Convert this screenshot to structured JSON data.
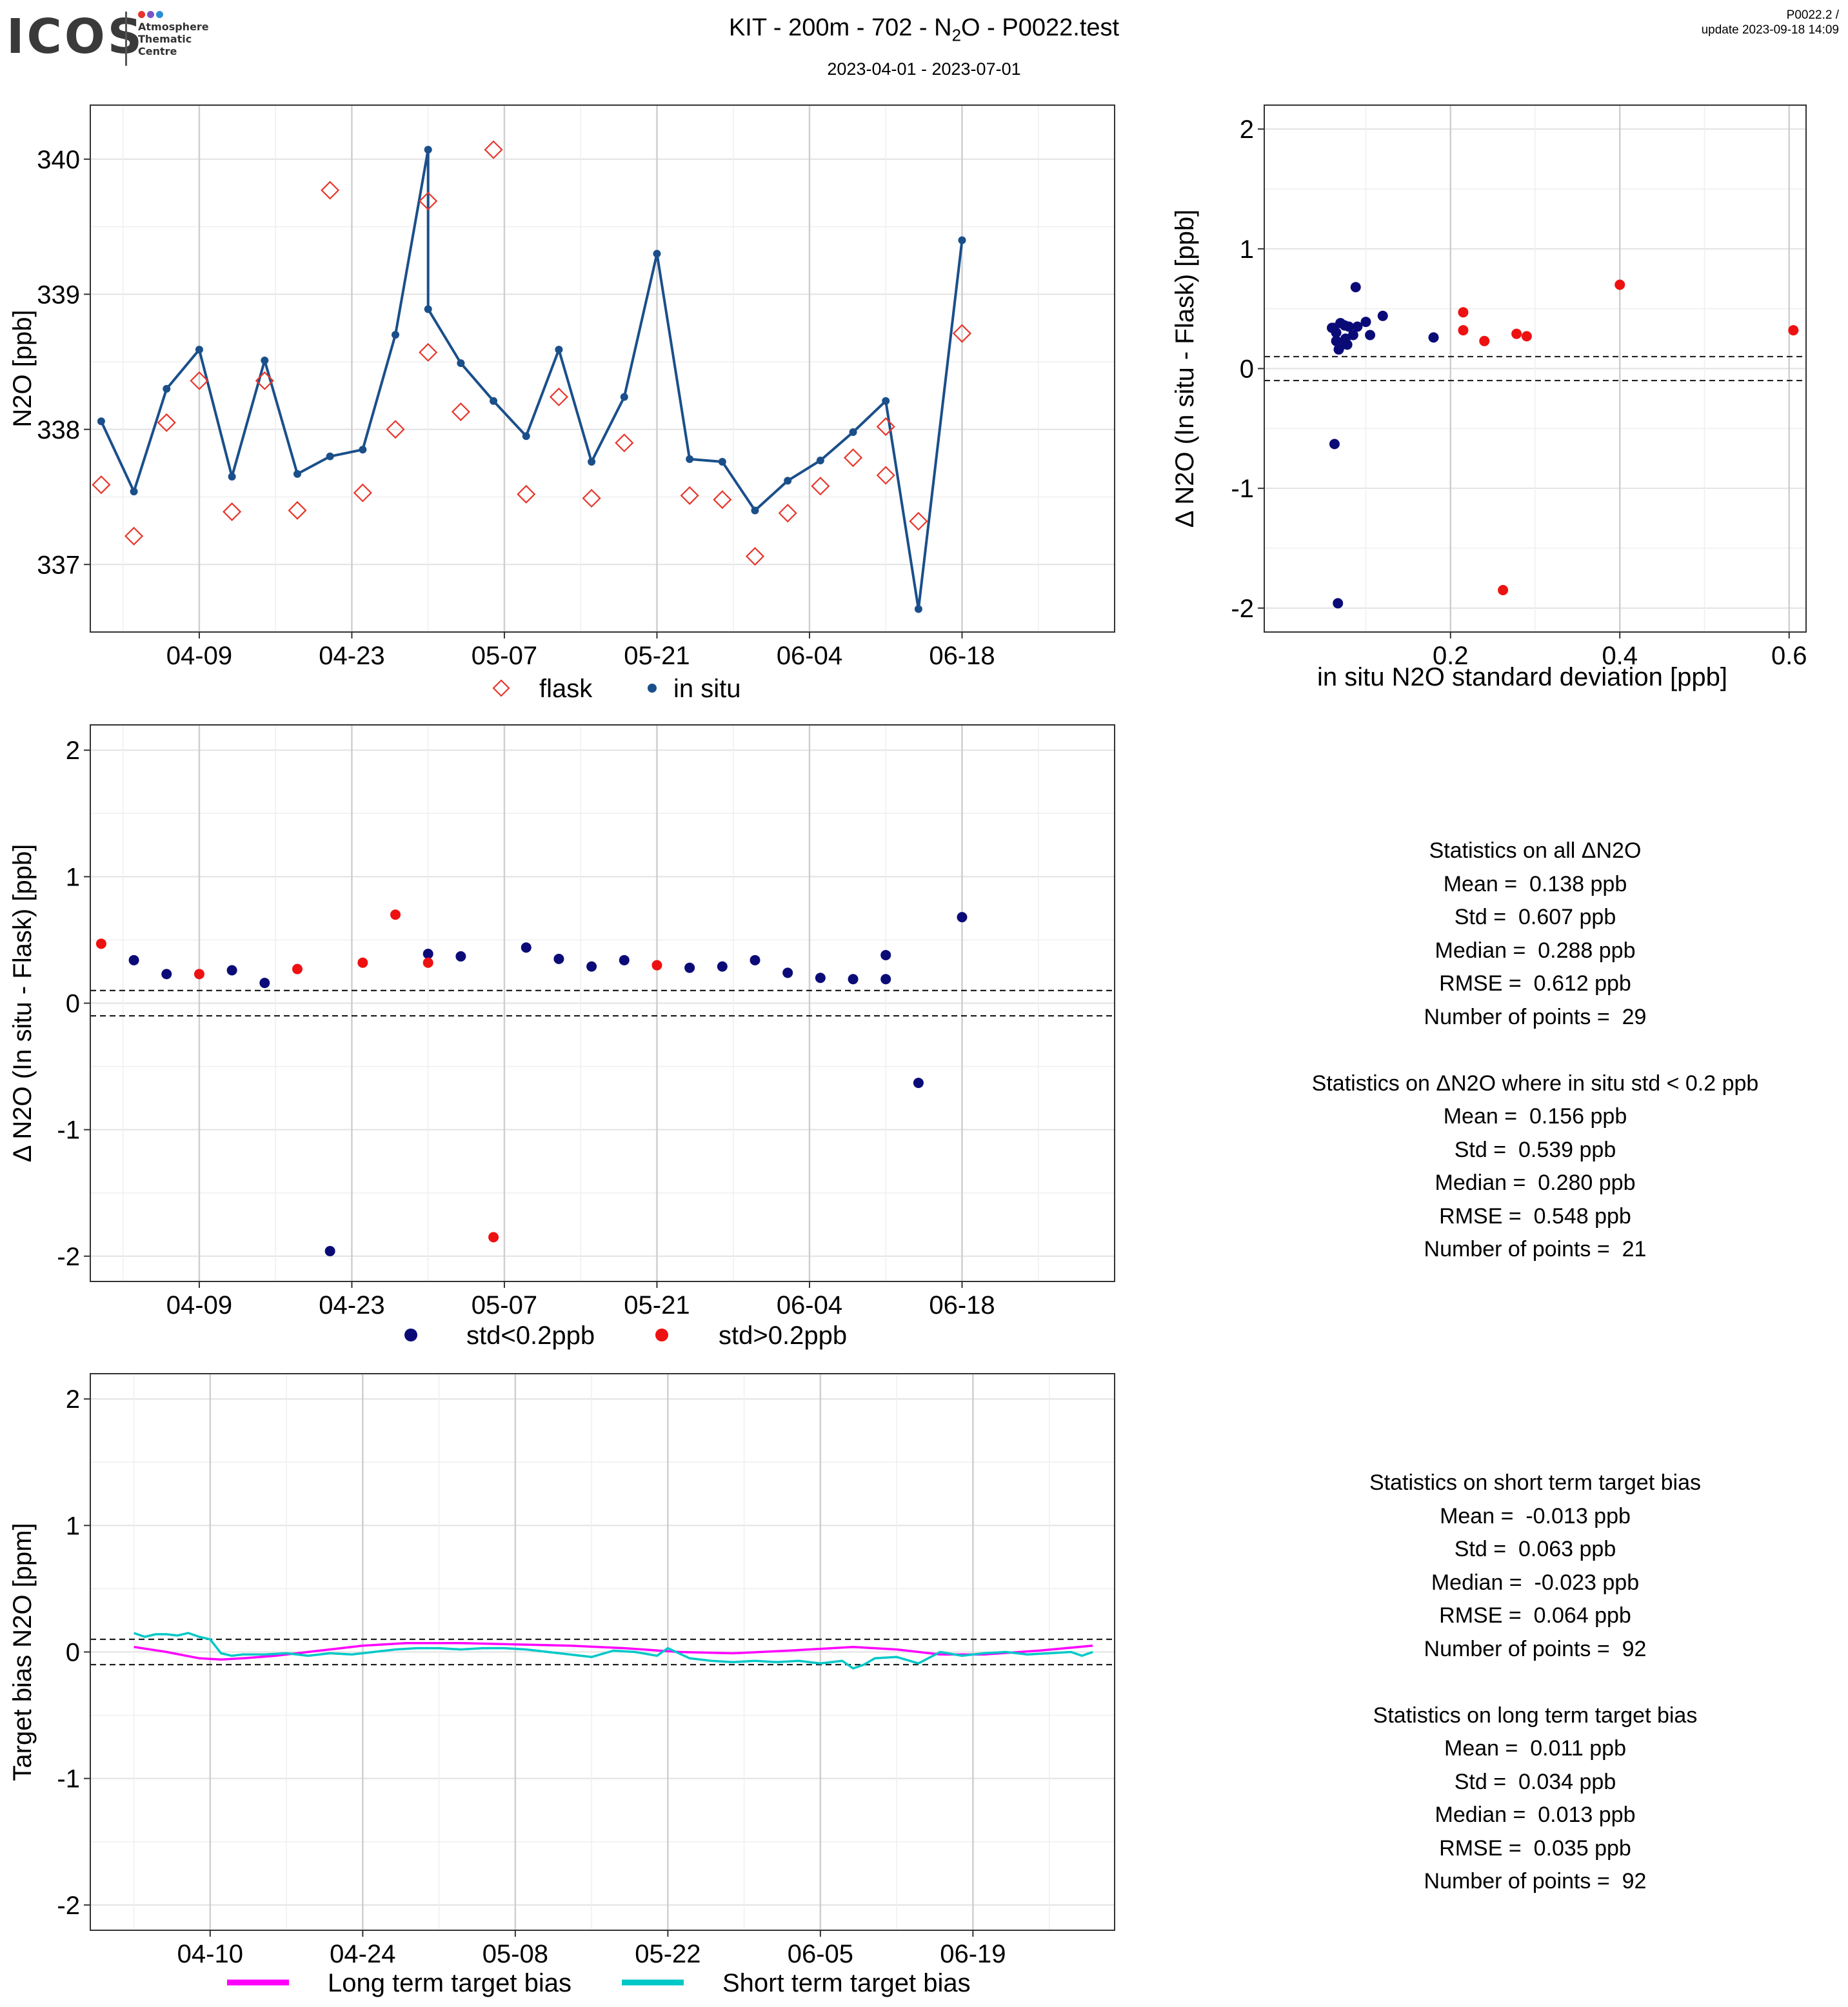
{
  "header": {
    "logo": "ICOS",
    "logo_sub": [
      "Atmosphere",
      "Thematic",
      "Centre"
    ],
    "title_pre": "KIT - 200m - 702 - N",
    "title_sub": "2",
    "title_post": "O - P0022.test",
    "subtitle": "2023-04-01 - 2023-07-01",
    "version": "P0022.2 /",
    "update": "update  2023-09-18 14:09"
  },
  "colors": {
    "insitu": "#1a4f8a",
    "flask": "#e8352a",
    "low_std": "#0b0b78",
    "high_std": "#ee1111",
    "long_term": "#ff00ff",
    "short_term": "#00c8c8"
  },
  "chart_data": [
    {
      "type": "line",
      "ylabel": "N2O [ppb]",
      "ylim": [
        336.5,
        340.4
      ],
      "yticks": [
        337,
        338,
        339,
        340
      ],
      "xticks": [
        {
          "date": "2023-04-09",
          "label": "04-09"
        },
        {
          "date": "2023-04-23",
          "label": "04-23"
        },
        {
          "date": "2023-05-07",
          "label": "05-07"
        },
        {
          "date": "2023-05-21",
          "label": "05-21"
        },
        {
          "date": "2023-06-04",
          "label": "06-04"
        },
        {
          "date": "2023-06-18",
          "label": "06-18"
        }
      ],
      "legend": [
        "flask",
        "in situ"
      ],
      "legend_position": "bottom",
      "series": [
        {
          "name": "in situ",
          "marker": "dot-line",
          "x": [
            "2023-03-31",
            "2023-04-03",
            "2023-04-06",
            "2023-04-09",
            "2023-04-12",
            "2023-04-15",
            "2023-04-18",
            "2023-04-21",
            "2023-04-24",
            "2023-04-27",
            "2023-04-30",
            "2023-04-30",
            "2023-05-03",
            "2023-05-06",
            "2023-05-09",
            "2023-05-12",
            "2023-05-15",
            "2023-05-18",
            "2023-05-21",
            "2023-05-24",
            "2023-05-27",
            "2023-05-30",
            "2023-06-02",
            "2023-06-05",
            "2023-06-08",
            "2023-06-11",
            "2023-06-14",
            "2023-06-18"
          ],
          "values": [
            338.06,
            337.54,
            338.3,
            338.59,
            337.65,
            338.51,
            337.67,
            337.8,
            337.85,
            338.7,
            340.07,
            338.89,
            338.49,
            338.21,
            337.95,
            338.59,
            337.76,
            338.24,
            339.3,
            337.78,
            337.76,
            337.4,
            337.62,
            337.77,
            337.98,
            338.21,
            336.67,
            339.4
          ]
        },
        {
          "name": "flask",
          "marker": "diamond",
          "x": [
            "2023-03-31",
            "2023-04-03",
            "2023-04-06",
            "2023-04-09",
            "2023-04-12",
            "2023-04-15",
            "2023-04-18",
            "2023-04-21",
            "2023-04-24",
            "2023-04-27",
            "2023-04-30",
            "2023-04-30",
            "2023-05-03",
            "2023-05-06",
            "2023-05-09",
            "2023-05-12",
            "2023-05-15",
            "2023-05-18",
            "2023-05-24",
            "2023-05-27",
            "2023-05-30",
            "2023-06-02",
            "2023-06-05",
            "2023-06-08",
            "2023-06-11",
            "2023-06-11",
            "2023-06-14",
            "2023-06-18"
          ],
          "values": [
            337.59,
            337.21,
            338.05,
            338.36,
            337.39,
            338.36,
            337.4,
            339.77,
            337.53,
            338.0,
            339.69,
            338.57,
            338.13,
            340.07,
            337.52,
            338.24,
            337.49,
            337.9,
            337.51,
            337.48,
            337.06,
            337.38,
            337.58,
            337.79,
            338.02,
            337.66,
            337.32,
            338.71
          ]
        }
      ]
    },
    {
      "type": "scatter",
      "xlabel": "in situ N2O standard deviation [ppb]",
      "ylabel": "Δ N2O (In situ - Flask) [ppb]",
      "xlim": [
        -0.02,
        0.62
      ],
      "ylim": [
        -2.2,
        2.2
      ],
      "xticks": [
        0.2,
        0.4,
        0.6
      ],
      "yticks": [
        -2,
        -1,
        0,
        1,
        2
      ],
      "hlines": [
        0.1,
        -0.1
      ],
      "series": [
        {
          "name": "std<0.2ppb",
          "x": [
            0.06,
            0.065,
            0.07,
            0.072,
            0.075,
            0.078,
            0.08,
            0.085,
            0.088,
            0.09,
            0.1,
            0.105,
            0.12,
            0.18,
            0.068,
            0.062,
            0.07,
            0.076,
            0.063,
            0.067,
            0.065
          ],
          "y": [
            0.34,
            0.3,
            0.38,
            0.22,
            0.36,
            0.2,
            0.35,
            0.28,
            0.68,
            0.35,
            0.39,
            0.28,
            0.44,
            0.26,
            0.16,
            0.34,
            0.19,
            0.25,
            -0.63,
            -1.96,
            0.23
          ]
        },
        {
          "name": "std>0.2ppb",
          "x": [
            0.215,
            0.215,
            0.24,
            0.262,
            0.278,
            0.29,
            0.4,
            0.605
          ],
          "y": [
            0.47,
            0.32,
            0.23,
            -1.85,
            0.29,
            0.27,
            0.7,
            0.32
          ]
        }
      ]
    },
    {
      "type": "scatter",
      "ylabel": "Δ N2O (In situ - Flask) [ppb]",
      "ylim": [
        -2.2,
        2.2
      ],
      "yticks": [
        -2,
        -1,
        0,
        1,
        2
      ],
      "xticks": [
        {
          "date": "2023-04-09",
          "label": "04-09"
        },
        {
          "date": "2023-04-23",
          "label": "04-23"
        },
        {
          "date": "2023-05-07",
          "label": "05-07"
        },
        {
          "date": "2023-05-21",
          "label": "05-21"
        },
        {
          "date": "2023-06-04",
          "label": "06-04"
        },
        {
          "date": "2023-06-18",
          "label": "06-18"
        }
      ],
      "hlines": [
        0.1,
        -0.1
      ],
      "legend": [
        "std<0.2ppb",
        "std>0.2ppb"
      ],
      "legend_position": "bottom",
      "series": [
        {
          "name": "std<0.2ppb",
          "x": [
            "2023-04-03",
            "2023-04-06",
            "2023-04-12",
            "2023-04-15",
            "2023-04-21",
            "2023-04-30",
            "2023-05-03",
            "2023-05-09",
            "2023-05-12",
            "2023-05-15",
            "2023-05-18",
            "2023-05-24",
            "2023-05-27",
            "2023-05-30",
            "2023-06-02",
            "2023-06-05",
            "2023-06-08",
            "2023-06-11",
            "2023-06-11",
            "2023-06-14",
            "2023-06-18"
          ],
          "values": [
            0.34,
            0.23,
            0.26,
            0.16,
            -1.96,
            0.39,
            0.37,
            0.44,
            0.35,
            0.29,
            0.34,
            0.28,
            0.29,
            0.34,
            0.24,
            0.2,
            0.19,
            0.19,
            0.38,
            -0.63,
            0.68
          ]
        },
        {
          "name": "std>0.2ppb",
          "x": [
            "2023-03-31",
            "2023-04-09",
            "2023-04-18",
            "2023-04-24",
            "2023-04-27",
            "2023-04-30",
            "2023-05-06",
            "2023-05-21"
          ],
          "values": [
            0.47,
            0.23,
            0.27,
            0.32,
            0.7,
            0.32,
            -1.85,
            0.3
          ]
        }
      ]
    },
    {
      "type": "line",
      "ylabel": "Target bias N2O [ppm]",
      "ylim": [
        -2.2,
        2.2
      ],
      "yticks": [
        -2,
        -1,
        0,
        1,
        2
      ],
      "xticks": [
        {
          "date": "2023-04-10",
          "label": "04-10"
        },
        {
          "date": "2023-04-24",
          "label": "04-24"
        },
        {
          "date": "2023-05-08",
          "label": "05-08"
        },
        {
          "date": "2023-05-22",
          "label": "05-22"
        },
        {
          "date": "2023-06-05",
          "label": "06-05"
        },
        {
          "date": "2023-06-19",
          "label": "06-19"
        }
      ],
      "hlines": [
        0.1,
        -0.1
      ],
      "legend": [
        "Long term target bias",
        "Short term target bias"
      ],
      "legend_position": "bottom",
      "series": [
        {
          "name": "Long term target bias",
          "x": [
            "2023-04-03",
            "2023-04-06",
            "2023-04-09",
            "2023-04-11",
            "2023-04-13",
            "2023-04-16",
            "2023-04-20",
            "2023-04-24",
            "2023-04-28",
            "2023-05-03",
            "2023-05-08",
            "2023-05-13",
            "2023-05-18",
            "2023-05-23",
            "2023-05-28",
            "2023-06-02",
            "2023-06-08",
            "2023-06-12",
            "2023-06-16",
            "2023-06-20",
            "2023-06-25",
            "2023-06-30"
          ],
          "values": [
            0.04,
            0.0,
            -0.05,
            -0.06,
            -0.05,
            -0.03,
            0.01,
            0.05,
            0.07,
            0.07,
            0.06,
            0.05,
            0.03,
            0.0,
            -0.01,
            0.01,
            0.04,
            0.02,
            -0.02,
            -0.02,
            0.01,
            0.05
          ]
        },
        {
          "name": "Short term target bias",
          "x": [
            "2023-04-03",
            "2023-04-04",
            "2023-04-05",
            "2023-04-06",
            "2023-04-07",
            "2023-04-08",
            "2023-04-09",
            "2023-04-10",
            "2023-04-11",
            "2023-04-12",
            "2023-04-13",
            "2023-04-15",
            "2023-04-17",
            "2023-04-19",
            "2023-04-21",
            "2023-04-23",
            "2023-04-25",
            "2023-04-27",
            "2023-04-29",
            "2023-05-01",
            "2023-05-03",
            "2023-05-05",
            "2023-05-07",
            "2023-05-09",
            "2023-05-11",
            "2023-05-13",
            "2023-05-15",
            "2023-05-17",
            "2023-05-19",
            "2023-05-21",
            "2023-05-22",
            "2023-05-24",
            "2023-05-26",
            "2023-05-28",
            "2023-05-30",
            "2023-06-01",
            "2023-06-03",
            "2023-06-05",
            "2023-06-07",
            "2023-06-08",
            "2023-06-09",
            "2023-06-10",
            "2023-06-12",
            "2023-06-14",
            "2023-06-16",
            "2023-06-18",
            "2023-06-20",
            "2023-06-22",
            "2023-06-24",
            "2023-06-26",
            "2023-06-28",
            "2023-06-29",
            "2023-06-30"
          ],
          "values": [
            0.15,
            0.12,
            0.14,
            0.14,
            0.13,
            0.15,
            0.12,
            0.1,
            -0.01,
            -0.03,
            -0.02,
            -0.02,
            -0.01,
            -0.03,
            -0.01,
            -0.02,
            0.0,
            0.02,
            0.03,
            0.03,
            0.02,
            0.03,
            0.03,
            0.02,
            0.0,
            -0.02,
            -0.04,
            0.01,
            0.0,
            -0.03,
            0.03,
            -0.05,
            -0.07,
            -0.08,
            -0.07,
            -0.08,
            -0.07,
            -0.09,
            -0.07,
            -0.13,
            -0.1,
            -0.05,
            -0.04,
            -0.09,
            0.0,
            -0.03,
            -0.01,
            0.0,
            -0.02,
            -0.01,
            0.0,
            -0.03,
            0.0
          ]
        }
      ]
    }
  ],
  "stats": {
    "block1": {
      "title": "Statistics on all ΔN2O",
      "mean": "Mean =  0.138 ppb",
      "std": "Std =  0.607 ppb",
      "median": "Median =  0.288 ppb",
      "rmse": "RMSE =  0.612 ppb",
      "n": "Number of points =  29"
    },
    "block2": {
      "title": "Statistics on ΔN2O where in situ std < 0.2 ppb",
      "mean": "Mean =  0.156 ppb",
      "std": "Std =  0.539 ppb",
      "median": "Median =  0.280 ppb",
      "rmse": "RMSE =  0.548 ppb",
      "n": "Number of points =  21"
    },
    "block3": {
      "title": "Statistics on short term target bias",
      "mean": "Mean =  -0.013 ppb",
      "std": "Std =  0.063 ppb",
      "median": "Median =  -0.023 ppb",
      "rmse": "RMSE =  0.064 ppb",
      "n": "Number of points =  92"
    },
    "block4": {
      "title": "Statistics on long term target bias",
      "mean": "Mean =  0.011 ppb",
      "std": "Std =  0.034 ppb",
      "median": "Median =  0.013 ppb",
      "rmse": "RMSE =  0.035 ppb",
      "n": "Number of points =  92"
    }
  }
}
